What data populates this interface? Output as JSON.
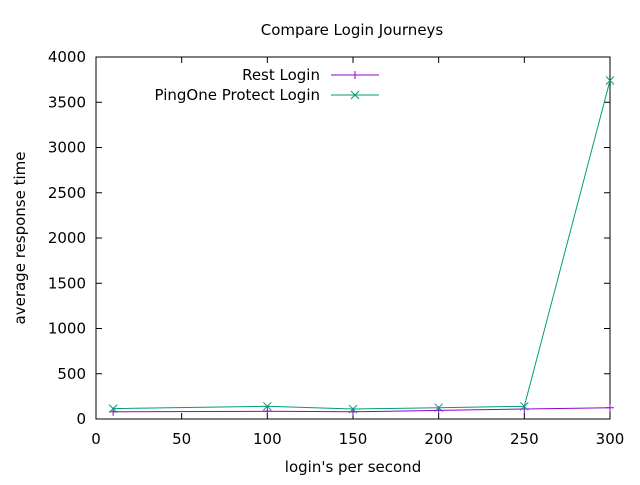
{
  "chart_data": {
    "type": "line",
    "title": "Compare Login Journeys",
    "xlabel": "login's per second",
    "ylabel": "average response time",
    "xlim": [
      0,
      300
    ],
    "ylim": [
      0,
      4000
    ],
    "xticks": [
      0,
      50,
      100,
      150,
      200,
      250,
      300
    ],
    "yticks": [
      0,
      500,
      1000,
      1500,
      2000,
      2500,
      3000,
      3500,
      4000
    ],
    "grid": false,
    "legend_position": "top-center",
    "series": [
      {
        "name": "Rest Login",
        "color": "#9400d3",
        "marker": "plus",
        "x": [
          10,
          100,
          150,
          200,
          250,
          300
        ],
        "y": [
          80,
          85,
          80,
          95,
          110,
          125
        ]
      },
      {
        "name": "PingOne Protect Login",
        "color": "#009e73",
        "marker": "cross",
        "x": [
          10,
          100,
          150,
          200,
          250,
          300
        ],
        "y": [
          115,
          140,
          110,
          125,
          140,
          3740
        ]
      }
    ]
  }
}
